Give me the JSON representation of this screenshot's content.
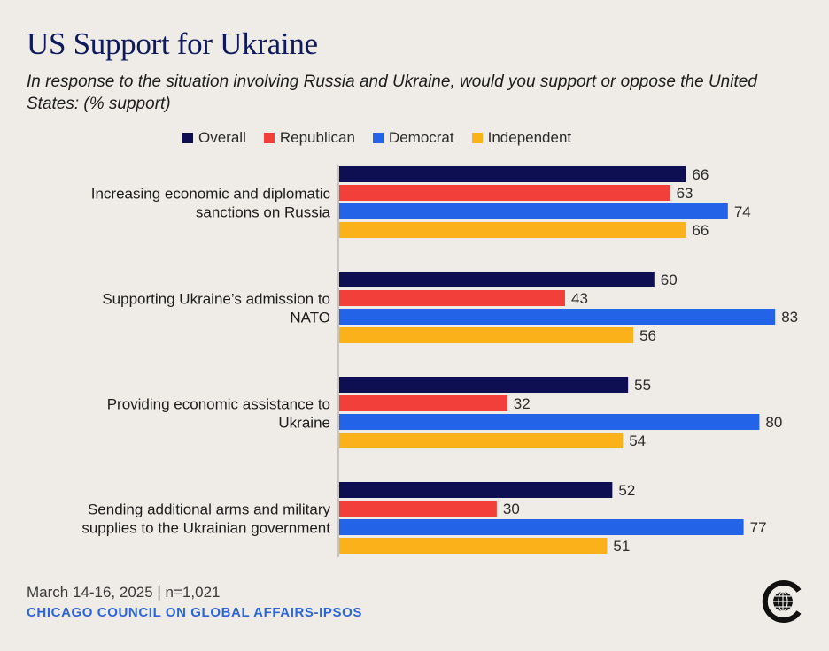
{
  "header": {
    "title": "US Support for Ukraine",
    "subtitle": "In response to the situation involving Russia and Ukraine, would you support or oppose the United States: (% support)"
  },
  "footer": {
    "date_note": "March 14-16, 2025 | n=1,021",
    "source": "CHICAGO COUNCIL ON GLOBAL AFFAIRS-IPSOS"
  },
  "logo": {
    "icon": "chicago-council-globe-logo",
    "color": "#111111"
  },
  "colors": {
    "overall": "#0d0f52",
    "republican": "#f23f3a",
    "democrat": "#2363e8",
    "independent": "#fbb21a",
    "background": "#efece8"
  },
  "chart_data": {
    "type": "bar",
    "orientation": "horizontal",
    "title": "US Support for Ukraine",
    "subtitle": "In response to the situation involving Russia and Ukraine, would you support or oppose the United States: (% support)",
    "categories": [
      [
        "Increasing economic and diplomatic",
        "sanctions on Russia"
      ],
      [
        "Supporting Ukraine’s admission to",
        "NATO"
      ],
      [
        "Providing economic assistance to",
        "Ukraine"
      ],
      [
        "Sending additional arms and military",
        "supplies to the Ukrainian government"
      ]
    ],
    "series": [
      {
        "name": "Overall",
        "color": "#0d0f52",
        "values": [
          66,
          60,
          55,
          52
        ]
      },
      {
        "name": "Republican",
        "color": "#f23f3a",
        "values": [
          63,
          43,
          32,
          30
        ]
      },
      {
        "name": "Democrat",
        "color": "#2363e8",
        "values": [
          74,
          83,
          80,
          77
        ]
      },
      {
        "name": "Independent",
        "color": "#fbb21a",
        "values": [
          66,
          56,
          54,
          51
        ]
      }
    ],
    "xlim": [
      0,
      100
    ],
    "grid": false,
    "legend": "top",
    "data_labels": true
  }
}
